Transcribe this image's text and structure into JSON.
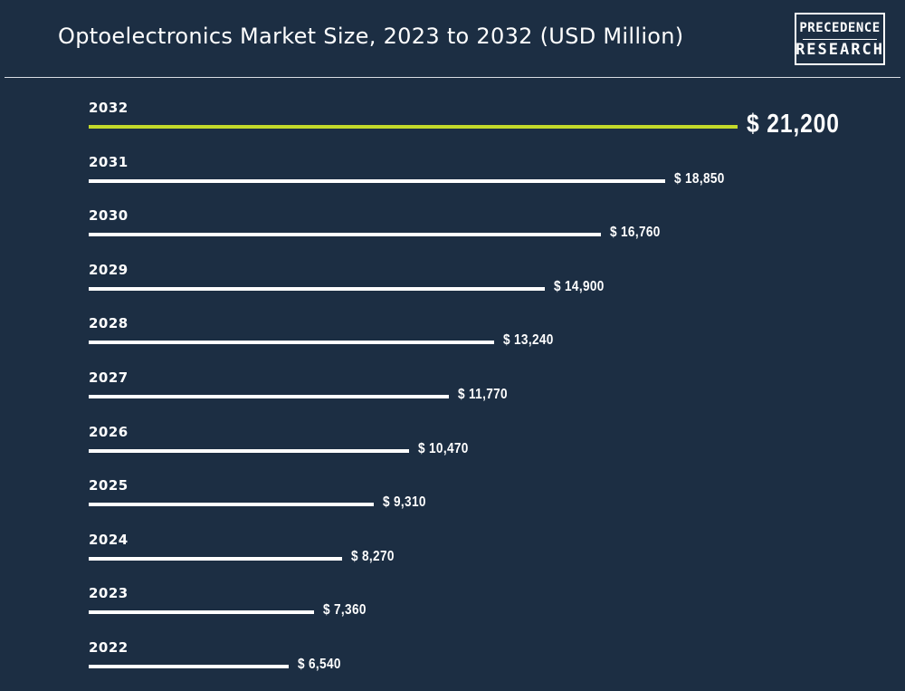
{
  "header": {
    "title": "Optoelectronics Market Size, 2023 to 2032 (USD Million)",
    "logo_line1": "PRECEDENCE",
    "logo_line2": "RESEARCH"
  },
  "chart_data": {
    "type": "bar",
    "orientation": "horizontal",
    "title": "Optoelectronics Market Size, 2023 to 2032 (USD Million)",
    "categories": [
      "2032",
      "2031",
      "2030",
      "2029",
      "2028",
      "2027",
      "2026",
      "2025",
      "2024",
      "2023",
      "2022"
    ],
    "values": [
      21200,
      18850,
      16760,
      14900,
      13240,
      11770,
      10470,
      9310,
      8270,
      7360,
      6540
    ],
    "value_labels": [
      "$ 21,200",
      "$ 18,850",
      "$ 16,760",
      "$ 14,900",
      "$ 13,240",
      "$ 11,770",
      "$ 10,470",
      "$ 9,310",
      "$ 8,270",
      "$ 7,360",
      "$ 6,540"
    ],
    "highlight_category": "2032",
    "colors": {
      "background": "#1c2e43",
      "bar": "#ffffff",
      "highlight": "#c3d92a",
      "text": "#ffffff"
    },
    "grid": false,
    "legend": "none"
  }
}
